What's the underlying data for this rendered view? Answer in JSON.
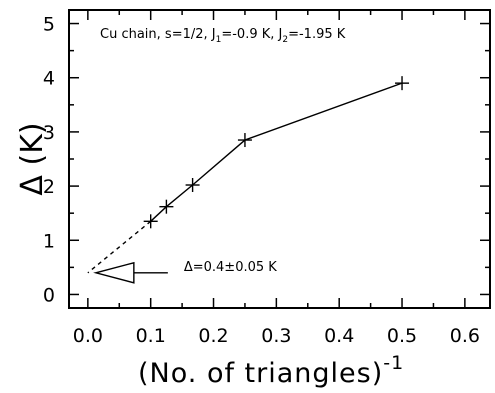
{
  "chart_data": {
    "type": "line",
    "title": "Cu chain, s=1/2, J",
    "title_parts": {
      "j1_sub": "1",
      "j1_val": "=-0.9 K, J",
      "j2_sub": "2",
      "j2_val": "=-1.95 K"
    },
    "xlabel": "(No.  of  triangles)",
    "xlabel_sup": "-1",
    "ylabel": "Δ (K)",
    "xlim": [
      -0.03,
      0.64
    ],
    "ylim": [
      -0.25,
      5.25
    ],
    "x_ticks": [
      "0.0",
      "0.1",
      "0.2",
      "0.3",
      "0.4",
      "0.5",
      "0.6"
    ],
    "y_ticks": [
      "0",
      "1",
      "2",
      "3",
      "4",
      "5"
    ],
    "grid": false,
    "series": [
      {
        "marker": "plus",
        "line": "solid",
        "x": [
          0.1,
          0.125,
          0.1667,
          0.25,
          0.5
        ],
        "y": [
          1.35,
          1.62,
          2.02,
          2.85,
          3.9
        ]
      }
    ],
    "extrapolation": {
      "line": "dashed",
      "from": [
        0.1,
        1.35
      ],
      "to": [
        0.0,
        0.4
      ]
    },
    "annotation": {
      "text": "Δ=0.4±0.05 K",
      "points_to": [
        0.0,
        0.4
      ]
    }
  }
}
